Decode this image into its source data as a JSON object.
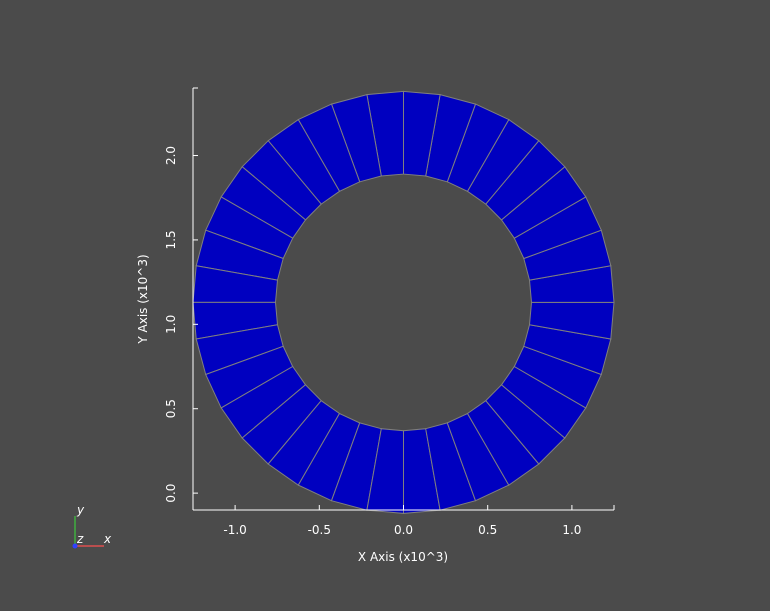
{
  "colors": {
    "background": "#4b4b4b",
    "ring_fill": "#0000c0",
    "segment_edge": "#7f7f7f",
    "axis": "#ffffff",
    "widget_x": "#e05050",
    "widget_y": "#40b040",
    "widget_z": "#3040ff"
  },
  "orientation_widget": {
    "x_label": "x",
    "y_label": "y",
    "z_label": "z"
  },
  "chart_data": {
    "type": "mesh",
    "shape": "annulus",
    "center": [
      0.0,
      1.13
    ],
    "inner_radius": 0.76,
    "outer_radius": 1.25,
    "segments": 36,
    "xlabel": "X Axis (x10^3)",
    "ylabel": "Y Axis (x10^3)",
    "xlim": [
      -1.25,
      1.25
    ],
    "ylim": [
      -0.1,
      2.4
    ],
    "xticks": [
      -1.0,
      -0.5,
      0.0,
      0.5,
      1.0
    ],
    "xtick_labels": [
      "-1.0",
      "-0.5",
      "0.0",
      "0.5",
      "1.0"
    ],
    "yticks": [
      0.0,
      0.5,
      1.0,
      1.5,
      2.0
    ],
    "ytick_labels": [
      "0.0",
      "0.5",
      "1.0",
      "1.5",
      "2.0"
    ],
    "grid": false
  }
}
